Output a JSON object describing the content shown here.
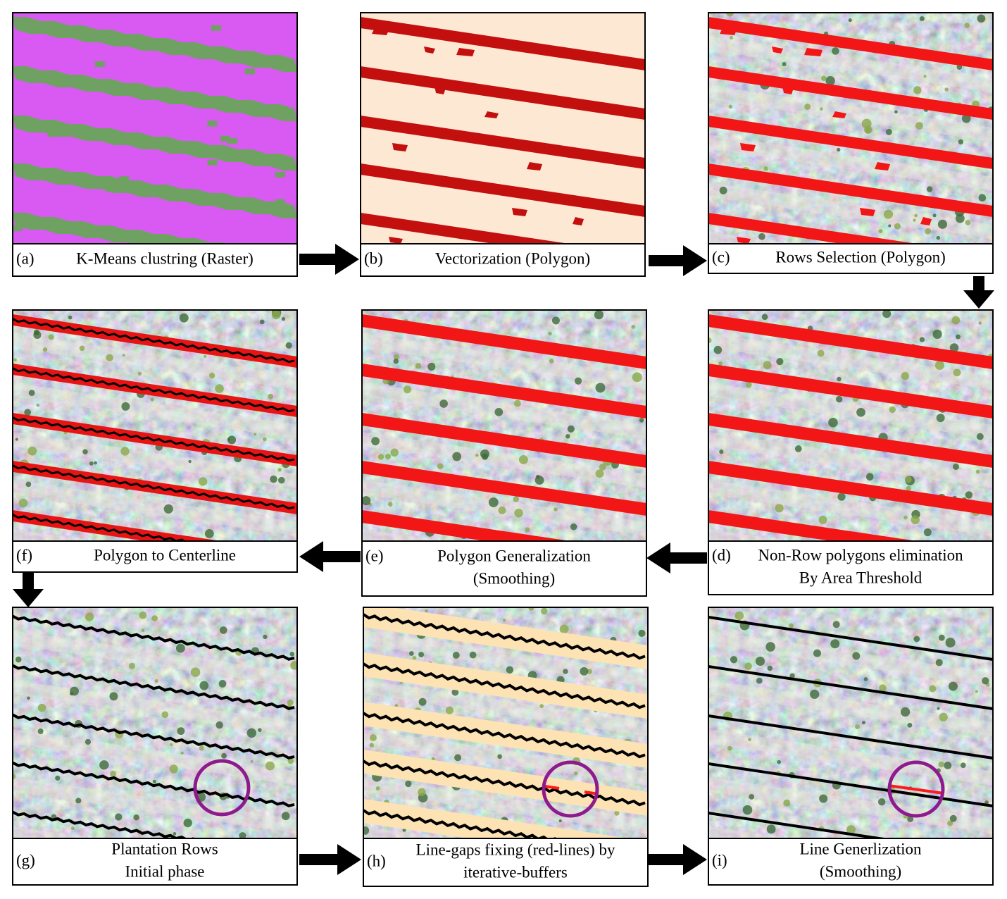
{
  "panels": [
    {
      "letter": "(a)",
      "caption": [
        "K-Means clustring (Raster)"
      ]
    },
    {
      "letter": "(b)",
      "caption": [
        "Vectorization (Polygon)"
      ]
    },
    {
      "letter": "(c)",
      "caption": [
        "Rows Selection (Polygon)"
      ]
    },
    {
      "letter": "(d)",
      "caption": [
        "Non-Row polygons elimination",
        "By Area Threshold"
      ]
    },
    {
      "letter": "(e)",
      "caption": [
        "Polygon Generalization",
        "(Smoothing)"
      ]
    },
    {
      "letter": "(f)",
      "caption": [
        "Polygon to Centerline"
      ]
    },
    {
      "letter": "(g)",
      "caption": [
        "Plantation Rows",
        "Initial phase"
      ]
    },
    {
      "letter": "(h)",
      "caption": [
        "Line-gaps fixing (red-lines) by",
        "iterative-buffers"
      ]
    },
    {
      "letter": "(i)",
      "caption": [
        "Line Generlization",
        "(Smoothing)"
      ]
    }
  ]
}
